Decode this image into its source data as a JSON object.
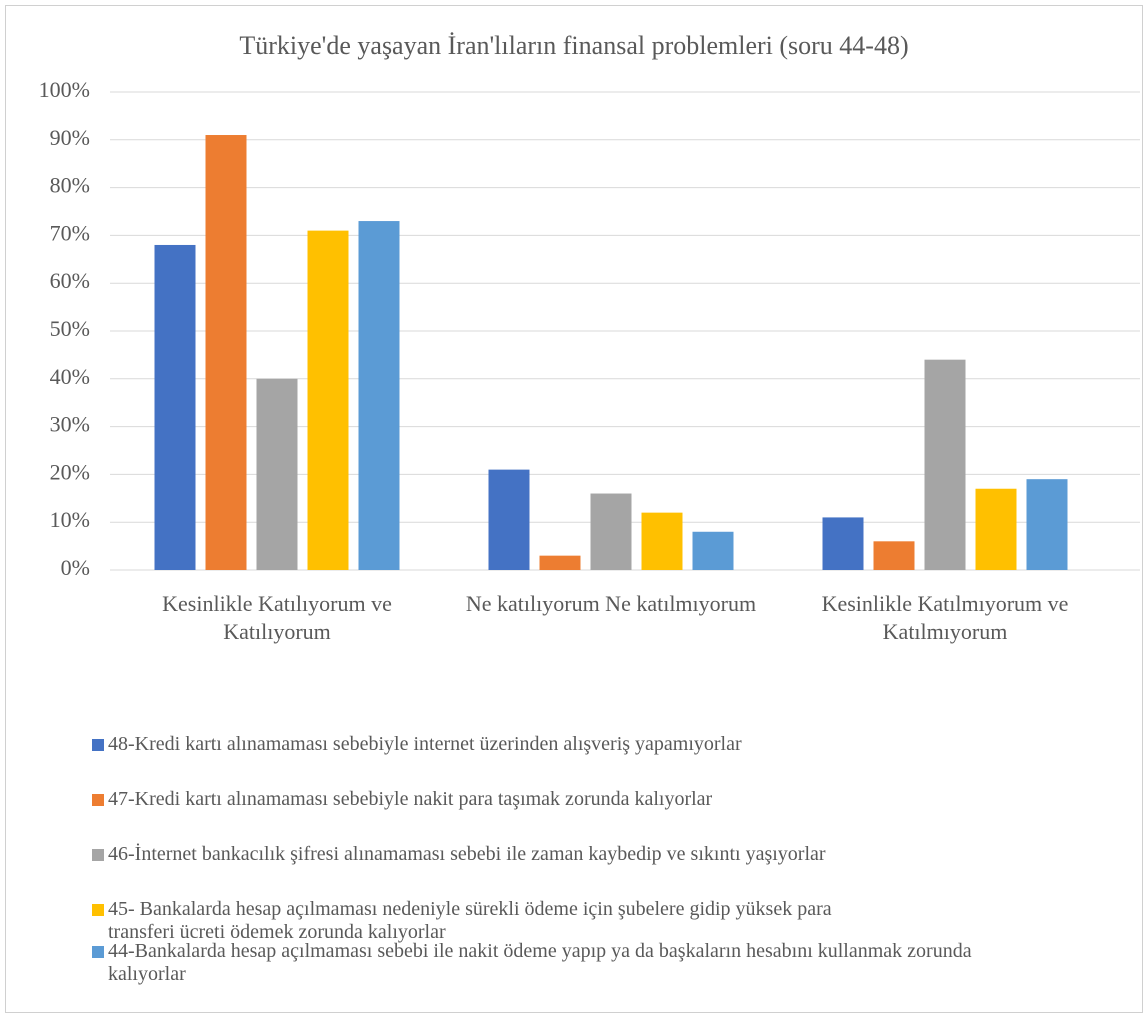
{
  "chart_data": {
    "type": "bar",
    "title": "Türkiye'de yaşayan İran'lıların finansal problemleri (soru 44-48)",
    "categories": [
      "Kesinlikle Katılıyorum ve Katılıyorum",
      "Ne katılıyorum Ne katılmıyorum",
      "Kesinlikle Katılmıyorum ve Katılmıyorum"
    ],
    "series": [
      {
        "name": "48-Kredi kartı alınamaması sebebiyle internet üzerinden alışveriş yapamıyorlar",
        "color": "#4472c4",
        "values": [
          68,
          21,
          11
        ]
      },
      {
        "name": "47-Kredi kartı alınamaması sebebiyle nakit para taşımak zorunda kalıyorlar",
        "color": "#ed7d31",
        "values": [
          91,
          3,
          6
        ]
      },
      {
        "name": "46-İnternet bankacılık şifresi alınamaması sebebi ile zaman kaybedip ve sıkıntı yaşıyorlar",
        "color": "#a5a5a5",
        "values": [
          40,
          16,
          44
        ]
      },
      {
        "name": "45- Bankalarda hesap açılmaması nedeniyle sürekli ödeme için şubelere gidip yüksek para transferi ücreti ödemek zorunda kalıyorlar",
        "color": "#ffc000",
        "values": [
          71,
          12,
          17
        ]
      },
      {
        "name": "44-Bankalarda hesap açılmaması sebebi ile nakit ödeme yapıp ya da başkaların hesabını kullanmak zorunda kalıyorlar",
        "color": "#5b9bd5",
        "values": [
          73,
          8,
          19
        ]
      }
    ],
    "ylim": [
      0,
      100
    ],
    "yticks": [
      {
        "value": 0,
        "label": "0%"
      },
      {
        "value": 10,
        "label": "10%"
      },
      {
        "value": 20,
        "label": "20%"
      },
      {
        "value": 30,
        "label": "30%"
      },
      {
        "value": 40,
        "label": "40%"
      },
      {
        "value": 50,
        "label": "50%"
      },
      {
        "value": 60,
        "label": "60%"
      },
      {
        "value": 70,
        "label": "70%"
      },
      {
        "value": 80,
        "label": "80%"
      },
      {
        "value": 90,
        "label": "90%"
      },
      {
        "value": 100,
        "label": "100%"
      }
    ],
    "grid": true,
    "legend": "bottom"
  }
}
